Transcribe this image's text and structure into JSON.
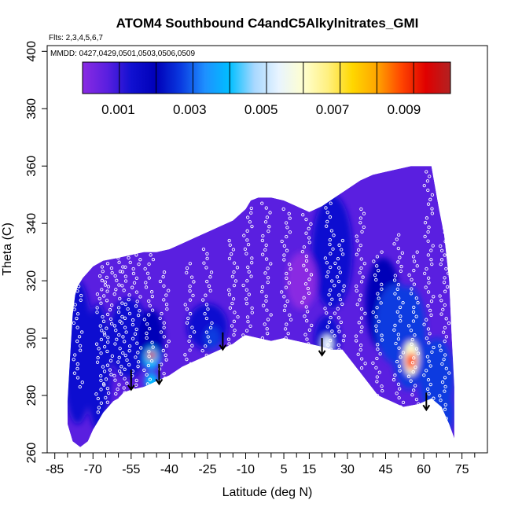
{
  "chart_data": {
    "type": "heatmap",
    "title": "ATOM4 Southbound C4andC5Alkylnitrates_GMI",
    "subtitles": [
      "Flts: 2,3,4,5,6,7",
      "MMDD: 0427,0429,0501,0503,0506,0509"
    ],
    "xlabel": "Latitude (deg N)",
    "ylabel": "Theta (C)",
    "xlim": [
      -88,
      85
    ],
    "ylim": [
      260,
      402
    ],
    "x_ticks": [
      -85,
      -70,
      -55,
      -40,
      -25,
      -10,
      5,
      15,
      30,
      45,
      60,
      75
    ],
    "x_minor_ticks": [
      -80,
      -75,
      -65,
      -60,
      -50,
      -45,
      -35,
      -30,
      -20,
      -15,
      -5,
      0,
      10,
      20,
      25,
      35,
      40,
      50,
      55,
      65,
      70,
      80
    ],
    "y_ticks": [
      260,
      280,
      300,
      320,
      340,
      360,
      380,
      400
    ],
    "colorbar": {
      "min": 0.0,
      "max": 0.0103,
      "tick_values": [
        0.001,
        0.003,
        0.005,
        0.007,
        0.009
      ],
      "tick_labels": [
        "0.001",
        "0.003",
        "0.005",
        "0.007",
        "0.009"
      ],
      "colors": [
        "#8a2be2",
        "#5a1fe0",
        "#1010d0",
        "#0000b8",
        "#0a3ae0",
        "#1e90ff",
        "#00bfff",
        "#a8d8ff",
        "#e8f4ff",
        "#ffffd0",
        "#fff080",
        "#ffd700",
        "#ffa500",
        "#ff4500",
        "#e00000",
        "#b22222"
      ],
      "divisions": 10
    },
    "domain_outline": [
      [
        -80,
        278
      ],
      [
        -79,
        293
      ],
      [
        -78,
        308
      ],
      [
        -77,
        315
      ],
      [
        -76,
        318
      ],
      [
        -74,
        321
      ],
      [
        -72,
        323
      ],
      [
        -70,
        325
      ],
      [
        -66,
        327
      ],
      [
        -60,
        328
      ],
      [
        -55,
        329
      ],
      [
        -50,
        330
      ],
      [
        -45,
        330
      ],
      [
        -40,
        331
      ],
      [
        -35,
        333
      ],
      [
        -30,
        335
      ],
      [
        -25,
        337
      ],
      [
        -20,
        339
      ],
      [
        -15,
        341
      ],
      [
        -10,
        345
      ],
      [
        -8,
        348
      ],
      [
        -5,
        349
      ],
      [
        0,
        349
      ],
      [
        5,
        348
      ],
      [
        10,
        346
      ],
      [
        15,
        344
      ],
      [
        20,
        346
      ],
      [
        25,
        349
      ],
      [
        30,
        352
      ],
      [
        35,
        355
      ],
      [
        40,
        357
      ],
      [
        45,
        358
      ],
      [
        50,
        359
      ],
      [
        55,
        360
      ],
      [
        60,
        360
      ],
      [
        63,
        360
      ],
      [
        64,
        355
      ],
      [
        66,
        345
      ],
      [
        68,
        336
      ],
      [
        70,
        320
      ],
      [
        71,
        300
      ],
      [
        72,
        283
      ],
      [
        72,
        265
      ],
      [
        70,
        270
      ],
      [
        67,
        276
      ],
      [
        63,
        279
      ],
      [
        58,
        277
      ],
      [
        52,
        276
      ],
      [
        47,
        278
      ],
      [
        42,
        280
      ],
      [
        35,
        288
      ],
      [
        28,
        296
      ],
      [
        24,
        296
      ],
      [
        20,
        297
      ],
      [
        15,
        298
      ],
      [
        10,
        299
      ],
      [
        5,
        300
      ],
      [
        0,
        299
      ],
      [
        -5,
        300
      ],
      [
        -10,
        301
      ],
      [
        -12,
        300
      ],
      [
        -15,
        298
      ],
      [
        -20,
        296
      ],
      [
        -25,
        294
      ],
      [
        -30,
        292
      ],
      [
        -35,
        290
      ],
      [
        -40,
        287
      ],
      [
        -45,
        285
      ],
      [
        -50,
        283
      ],
      [
        -55,
        282
      ],
      [
        -58,
        281
      ],
      [
        -60,
        279
      ],
      [
        -62,
        278
      ],
      [
        -64,
        276
      ],
      [
        -66,
        274
      ],
      [
        -68,
        271
      ],
      [
        -70,
        268
      ],
      [
        -72,
        264
      ],
      [
        -75,
        262
      ],
      [
        -78,
        264
      ],
      [
        -80,
        270
      ]
    ],
    "blobs": [
      {
        "x": -76,
        "y": 295,
        "rx": 6,
        "ry": 25,
        "value": 0.0014
      },
      {
        "x": -68,
        "y": 290,
        "rx": 5,
        "ry": 22,
        "value": 0.0016
      },
      {
        "x": -56,
        "y": 300,
        "rx": 8,
        "ry": 14,
        "value": 0.0014
      },
      {
        "x": -47,
        "y": 300,
        "rx": 5,
        "ry": 10,
        "value": 0.0024
      },
      {
        "x": -47,
        "y": 293,
        "rx": 3,
        "ry": 4,
        "value": 0.0045
      },
      {
        "x": -47,
        "y": 294,
        "rx": 1.5,
        "ry": 1.5,
        "value": 0.0094
      },
      {
        "x": -47,
        "y": 285,
        "rx": 2.5,
        "ry": 3,
        "value": 0.0042
      },
      {
        "x": -25,
        "y": 304,
        "rx": 8,
        "ry": 8,
        "value": 0.0014
      },
      {
        "x": -23,
        "y": 300,
        "rx": 3,
        "ry": 4,
        "value": 0.0026
      },
      {
        "x": 22,
        "y": 300,
        "rx": 5,
        "ry": 8,
        "value": 0.0018
      },
      {
        "x": 22,
        "y": 298,
        "rx": 2,
        "ry": 3,
        "value": 0.0052
      },
      {
        "x": 24,
        "y": 330,
        "rx": 8,
        "ry": 20,
        "value": 0.0016
      },
      {
        "x": 44,
        "y": 312,
        "rx": 7,
        "ry": 16,
        "value": 0.0025
      },
      {
        "x": 49,
        "y": 305,
        "rx": 8,
        "ry": 14,
        "value": 0.0027
      },
      {
        "x": 54,
        "y": 300,
        "rx": 7,
        "ry": 18,
        "value": 0.003
      },
      {
        "x": 55,
        "y": 293,
        "rx": 3,
        "ry": 6,
        "value": 0.0058
      },
      {
        "x": 55,
        "y": 292,
        "rx": 2,
        "ry": 3,
        "value": 0.0084
      },
      {
        "x": 65,
        "y": 286,
        "rx": 7,
        "ry": 14,
        "value": 0.0026
      },
      {
        "x": 67,
        "y": 274,
        "rx": 5,
        "ry": 8,
        "value": 0.003
      },
      {
        "x": 12,
        "y": 320,
        "rx": 6,
        "ry": 10,
        "value": 0.0004
      }
    ],
    "flight_tracks": [
      {
        "lat": -76,
        "theta_min": 283,
        "theta_max": 318
      },
      {
        "lat": -67,
        "theta_min": 271,
        "theta_max": 328
      },
      {
        "lat": -64,
        "theta_min": 276,
        "theta_max": 326
      },
      {
        "lat": -60,
        "theta_min": 279,
        "theta_max": 328
      },
      {
        "lat": -57,
        "theta_min": 281,
        "theta_max": 328
      },
      {
        "lat": -53,
        "theta_min": 282,
        "theta_max": 329
      },
      {
        "lat": -48,
        "theta_min": 284,
        "theta_max": 329
      },
      {
        "lat": -42,
        "theta_min": 286,
        "theta_max": 323
      },
      {
        "lat": -32,
        "theta_min": 291,
        "theta_max": 326
      },
      {
        "lat": -25,
        "theta_min": 294,
        "theta_max": 331
      },
      {
        "lat": -15,
        "theta_min": 298,
        "theta_max": 334
      },
      {
        "lat": -9,
        "theta_min": 301,
        "theta_max": 350
      },
      {
        "lat": -2,
        "theta_min": 300,
        "theta_max": 347
      },
      {
        "lat": 6,
        "theta_min": 300,
        "theta_max": 345
      },
      {
        "lat": 14,
        "theta_min": 298,
        "theta_max": 343
      },
      {
        "lat": 23,
        "theta_min": 296,
        "theta_max": 347
      },
      {
        "lat": 27,
        "theta_min": 296,
        "theta_max": 334
      },
      {
        "lat": 35,
        "theta_min": 288,
        "theta_max": 345
      },
      {
        "lat": 42,
        "theta_min": 280,
        "theta_max": 330
      },
      {
        "lat": 50,
        "theta_min": 276,
        "theta_max": 336
      },
      {
        "lat": 56,
        "theta_min": 277,
        "theta_max": 330
      },
      {
        "lat": 62,
        "theta_min": 279,
        "theta_max": 358
      },
      {
        "lat": 68,
        "theta_min": 272,
        "theta_max": 340
      }
    ],
    "arrows": [
      {
        "lat": -55,
        "theta_top": 289,
        "theta_tip": 282
      },
      {
        "lat": -44,
        "theta_top": 291,
        "theta_tip": 284
      },
      {
        "lat": -19,
        "theta_top": 302,
        "theta_tip": 296
      },
      {
        "lat": 20,
        "theta_top": 300,
        "theta_tip": 294
      },
      {
        "lat": 61,
        "theta_top": 281,
        "theta_tip": 275
      }
    ]
  }
}
